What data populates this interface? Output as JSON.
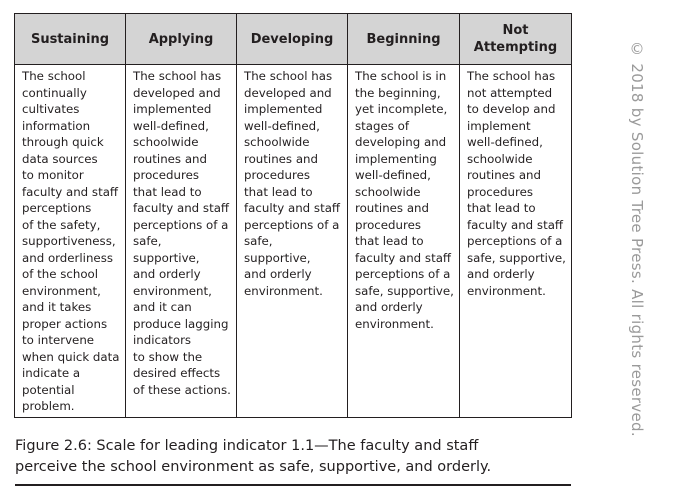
{
  "table": {
    "headers": [
      "Sustaining",
      "Applying",
      "Developing",
      "Beginning",
      "Not\nAttempting"
    ],
    "cells": [
      "The school\ncontinually\ncultivates\ninformation\nthrough quick\ndata sources\nto monitor\nfaculty and staff\nperceptions\nof the safety,\nsupportiveness,\nand orderliness\nof the school\nenvironment,\nand it takes\nproper actions\nto intervene\nwhen quick data\nindicate a\npotential\nproblem.",
      "The school has\ndeveloped and\nimplemented\nwell-defined,\nschoolwide\nroutines and\nprocedures\nthat lead to\nfaculty and staff\nperceptions of a\nsafe, supportive,\nand orderly\nenvironment,\nand it can\nproduce lagging\nindicators\nto show the\ndesired effects\nof these actions.",
      "The school has\ndeveloped and\nimplemented\nwell-defined,\nschoolwide\nroutines and\nprocedures\nthat lead to\nfaculty and staff\nperceptions of a\nsafe, supportive,\nand orderly\nenvironment.",
      "The school is in\nthe beginning,\nyet incomplete,\nstages of\ndeveloping and\nimplementing\nwell-defined,\nschoolwide\nroutines and\nprocedures\nthat lead to\nfaculty and staff\nperceptions of a\nsafe, supportive,\nand orderly\nenvironment.",
      "The school has\nnot attempted\nto develop and\nimplement\nwell-defined,\nschoolwide\nroutines and\nprocedures\nthat lead to\nfaculty and staff\nperceptions of a\nsafe, supportive,\nand orderly\nenvironment."
    ]
  },
  "caption": "Figure 2.6: Scale for leading indicator 1.1—The faculty and staff\nperceive the school environment as safe, supportive, and orderly.",
  "copyright": "© 2018 by Solution Tree Press. All rights reserved.",
  "colors": {
    "header_background": "#d4d4d4",
    "text": "#231f20",
    "copyright_text": "#9a9a9a"
  }
}
